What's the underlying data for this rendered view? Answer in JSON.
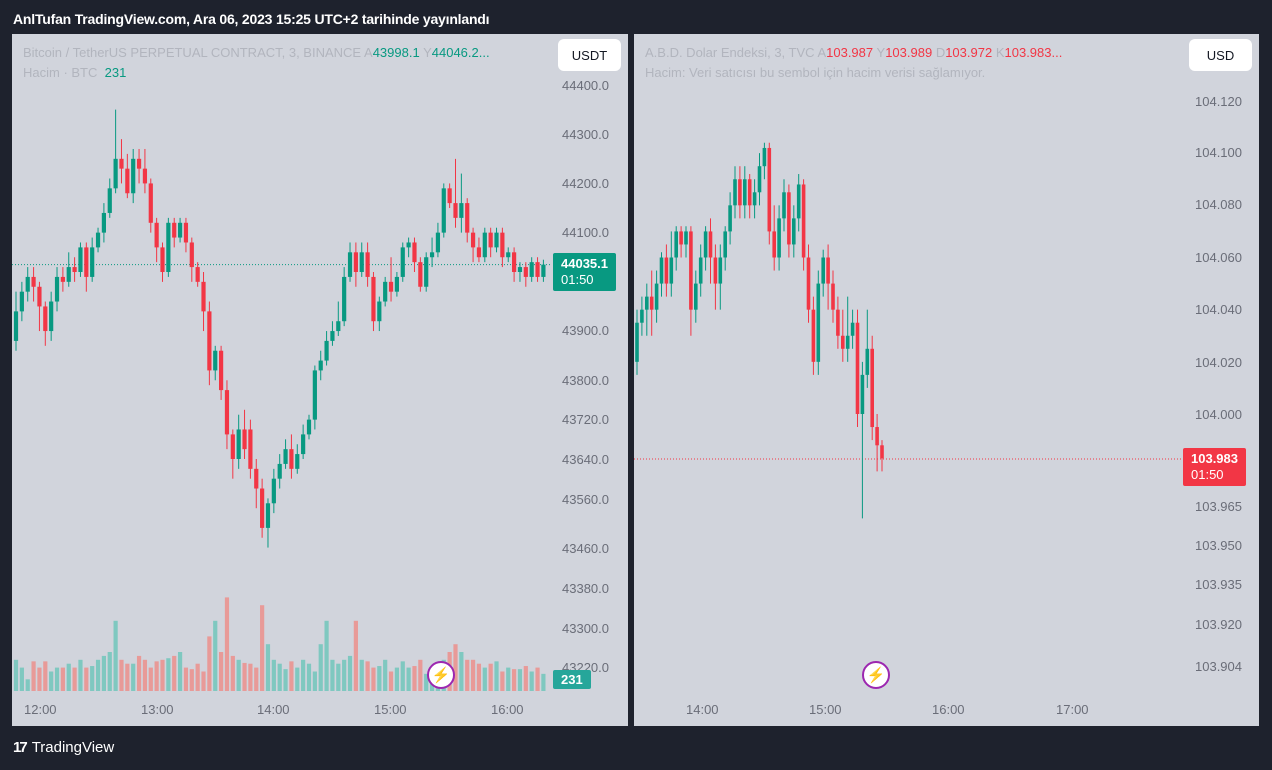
{
  "header": {
    "title": "AnlTufan TradingView.com, Ara 06, 2023 15:25 UTC+2 tarihinde yayınlandı"
  },
  "footer": {
    "logo_text": "TradingView",
    "logo_icon": "tradingview-logo-icon"
  },
  "left_panel": {
    "symbol": "Bitcoin / TetherUS PERPETUAL CONTRACT, 3, BINANCE",
    "ohlc": {
      "o_label": "A",
      "o": "43998.1",
      "h_label": "Y",
      "h": "44046.2..."
    },
    "volume_label": "Hacim · BTC",
    "volume_value": "231",
    "currency": "USDT",
    "last_price": "44035.1",
    "countdown": "01:50",
    "volume_badge": "231"
  },
  "right_panel": {
    "symbol": "A.B.D. Dolar Endeksi, 3, TVC",
    "ohlc": {
      "o_label": "A",
      "o": "103.987",
      "h_label": "Y",
      "h": "103.989",
      "l_label": "D",
      "l": "103.972",
      "c_label": "K",
      "c": "103.983..."
    },
    "volume_note": "Hacim: Veri satıcısı bu sembol için hacim verisi sağlamıyor.",
    "currency": "USD",
    "last_price": "103.983",
    "countdown": "01:50"
  },
  "colors": {
    "up": "#089981",
    "down": "#f23645",
    "vol_up": "#7fc8c0",
    "vol_down": "#e89a98",
    "bg": "#d1d4dc",
    "frame": "#1e222d"
  },
  "icons": {
    "alert": "lightning-bolt-icon"
  },
  "chart_data": [
    {
      "type": "candlestick",
      "title": "Bitcoin / TetherUS PERPETUAL CONTRACT, 3, BINANCE",
      "x_ticks": [
        "12:00",
        "13:00",
        "14:00",
        "15:00",
        "16:00"
      ],
      "y_ticks": [
        "44400.0",
        "44300.0",
        "44200.0",
        "44100.0",
        "43900.0",
        "43800.0",
        "43720.0",
        "43640.0",
        "43560.0",
        "43460.0",
        "43380.0",
        "43300.0",
        "43220.0"
      ],
      "last_price": 44035.1,
      "candles": [
        [
          43880,
          43940,
          43860,
          43980
        ],
        [
          43940,
          43980,
          43920,
          44000
        ],
        [
          43980,
          44010,
          43960,
          44030
        ],
        [
          44010,
          43990,
          43960,
          44030
        ],
        [
          43990,
          43950,
          43900,
          44000
        ],
        [
          43950,
          43900,
          43870,
          43960
        ],
        [
          43900,
          43960,
          43880,
          43980
        ],
        [
          43960,
          44010,
          43940,
          44030
        ],
        [
          44010,
          44000,
          43980,
          44030
        ],
        [
          44000,
          44030,
          43990,
          44060
        ],
        [
          44030,
          44020,
          44000,
          44050
        ],
        [
          44020,
          44070,
          44010,
          44080
        ],
        [
          44070,
          44010,
          43980,
          44080
        ],
        [
          44010,
          44070,
          44000,
          44090
        ],
        [
          44070,
          44100,
          44060,
          44110
        ],
        [
          44100,
          44140,
          44080,
          44160
        ],
        [
          44140,
          44190,
          44130,
          44210
        ],
        [
          44190,
          44250,
          44180,
          44350
        ],
        [
          44250,
          44230,
          44200,
          44290
        ],
        [
          44230,
          44180,
          44170,
          44260
        ],
        [
          44180,
          44250,
          44160,
          44270
        ],
        [
          44250,
          44230,
          44200,
          44270
        ],
        [
          44230,
          44200,
          44180,
          44270
        ],
        [
          44200,
          44120,
          44100,
          44210
        ],
        [
          44120,
          44070,
          44040,
          44130
        ],
        [
          44070,
          44020,
          44000,
          44080
        ],
        [
          44020,
          44120,
          44010,
          44130
        ],
        [
          44120,
          44090,
          44070,
          44130
        ],
        [
          44090,
          44120,
          44080,
          44130
        ],
        [
          44120,
          44080,
          44060,
          44130
        ],
        [
          44080,
          44030,
          44000,
          44090
        ],
        [
          44030,
          44000,
          43990,
          44040
        ],
        [
          44000,
          43940,
          43900,
          44020
        ],
        [
          43940,
          43820,
          43790,
          43960
        ],
        [
          43820,
          43860,
          43800,
          43870
        ],
        [
          43860,
          43780,
          43760,
          43870
        ],
        [
          43780,
          43690,
          43660,
          43800
        ],
        [
          43690,
          43640,
          43600,
          43700
        ],
        [
          43640,
          43700,
          43620,
          43730
        ],
        [
          43700,
          43660,
          43640,
          43740
        ],
        [
          43700,
          43620,
          43600,
          43720
        ],
        [
          43620,
          43580,
          43540,
          43640
        ],
        [
          43580,
          43500,
          43480,
          43600
        ],
        [
          43500,
          43550,
          43460,
          43560
        ],
        [
          43550,
          43600,
          43530,
          43620
        ],
        [
          43600,
          43630,
          43580,
          43650
        ],
        [
          43630,
          43660,
          43620,
          43680
        ],
        [
          43660,
          43620,
          43600,
          43690
        ],
        [
          43620,
          43650,
          43610,
          43670
        ],
        [
          43650,
          43690,
          43640,
          43710
        ],
        [
          43690,
          43720,
          43680,
          43730
        ],
        [
          43720,
          43820,
          43700,
          43830
        ],
        [
          43820,
          43840,
          43800,
          43860
        ],
        [
          43840,
          43880,
          43830,
          43900
        ],
        [
          43880,
          43900,
          43870,
          43920
        ],
        [
          43900,
          43920,
          43890,
          43960
        ],
        [
          43920,
          44010,
          43910,
          44030
        ],
        [
          44010,
          44060,
          44000,
          44080
        ],
        [
          44060,
          44020,
          43990,
          44080
        ],
        [
          44020,
          44060,
          44010,
          44080
        ],
        [
          44060,
          44010,
          43990,
          44080
        ],
        [
          44010,
          43920,
          43900,
          44020
        ],
        [
          43920,
          43960,
          43900,
          43970
        ],
        [
          43960,
          44000,
          43950,
          44010
        ],
        [
          44000,
          43980,
          43960,
          44050
        ],
        [
          43980,
          44010,
          43970,
          44020
        ],
        [
          44010,
          44070,
          44000,
          44080
        ],
        [
          44070,
          44080,
          44050,
          44090
        ],
        [
          44080,
          44040,
          44020,
          44090
        ],
        [
          44040,
          43990,
          43980,
          44050
        ],
        [
          43990,
          44050,
          43980,
          44060
        ],
        [
          44050,
          44060,
          44030,
          44090
        ],
        [
          44060,
          44100,
          44050,
          44120
        ],
        [
          44100,
          44190,
          44090,
          44200
        ],
        [
          44190,
          44160,
          44150,
          44200
        ],
        [
          44160,
          44130,
          44110,
          44250
        ],
        [
          44130,
          44160,
          44100,
          44220
        ],
        [
          44160,
          44100,
          44080,
          44170
        ],
        [
          44100,
          44070,
          44040,
          44110
        ],
        [
          44070,
          44050,
          44040,
          44090
        ],
        [
          44050,
          44100,
          44040,
          44110
        ],
        [
          44100,
          44070,
          44050,
          44110
        ],
        [
          44070,
          44100,
          44060,
          44110
        ],
        [
          44100,
          44050,
          44030,
          44110
        ],
        [
          44050,
          44060,
          44040,
          44070
        ],
        [
          44060,
          44020,
          44000,
          44070
        ],
        [
          44020,
          44030,
          44000,
          44040
        ],
        [
          44030,
          44010,
          43990,
          44040
        ],
        [
          44010,
          44040,
          44000,
          44050
        ],
        [
          44040,
          44010,
          44000,
          44050
        ],
        [
          44010,
          44035,
          44000,
          44045
        ]
      ],
      "volumes": [
        40,
        30,
        15,
        38,
        30,
        38,
        25,
        30,
        30,
        35,
        30,
        40,
        30,
        32,
        40,
        45,
        50,
        90,
        40,
        35,
        35,
        45,
        40,
        30,
        38,
        40,
        42,
        45,
        50,
        30,
        28,
        35,
        25,
        70,
        90,
        50,
        120,
        45,
        40,
        36,
        35,
        30,
        110,
        60,
        40,
        35,
        28,
        38,
        30,
        40,
        35,
        25,
        60,
        90,
        40,
        35,
        40,
        45,
        90,
        40,
        38,
        30,
        32,
        40,
        25,
        30,
        38,
        30,
        32,
        40,
        22,
        25,
        35,
        40,
        50,
        60,
        50,
        40,
        40,
        35,
        30,
        35,
        38,
        25,
        30,
        28,
        28,
        32,
        25,
        30,
        22
      ]
    },
    {
      "type": "candlestick",
      "title": "A.B.D. Dolar Endeksi, 3, TVC",
      "x_ticks": [
        "14:00",
        "15:00",
        "16:00",
        "17:00"
      ],
      "y_ticks": [
        "104.120",
        "104.100",
        "104.080",
        "104.060",
        "104.040",
        "104.020",
        "104.000",
        "103.983",
        "103.965",
        "103.950",
        "103.935",
        "103.920",
        "103.904"
      ],
      "last_price": 103.983,
      "candles": [
        [
          104.02,
          104.035,
          104.015,
          104.04
        ],
        [
          104.035,
          104.04,
          104.03,
          104.045
        ],
        [
          104.04,
          104.045,
          104.03,
          104.05
        ],
        [
          104.045,
          104.04,
          104.03,
          104.055
        ],
        [
          104.04,
          104.05,
          104.035,
          104.055
        ],
        [
          104.05,
          104.06,
          104.045,
          104.062
        ],
        [
          104.06,
          104.05,
          104.045,
          104.065
        ],
        [
          104.05,
          104.06,
          104.045,
          104.07
        ],
        [
          104.06,
          104.07,
          104.055,
          104.072
        ],
        [
          104.07,
          104.065,
          104.06,
          104.072
        ],
        [
          104.065,
          104.07,
          104.06,
          104.072
        ],
        [
          104.07,
          104.04,
          104.03,
          104.072
        ],
        [
          104.04,
          104.05,
          104.035,
          104.055
        ],
        [
          104.05,
          104.06,
          104.045,
          104.065
        ],
        [
          104.06,
          104.07,
          104.055,
          104.072
        ],
        [
          104.07,
          104.06,
          104.05,
          104.075
        ],
        [
          104.06,
          104.05,
          104.04,
          104.065
        ],
        [
          104.05,
          104.06,
          104.04,
          104.065
        ],
        [
          104.06,
          104.07,
          104.055,
          104.072
        ],
        [
          104.07,
          104.08,
          104.065,
          104.085
        ],
        [
          104.08,
          104.09,
          104.075,
          104.095
        ],
        [
          104.09,
          104.08,
          104.075,
          104.095
        ],
        [
          104.08,
          104.09,
          104.075,
          104.095
        ],
        [
          104.09,
          104.08,
          104.075,
          104.092
        ],
        [
          104.08,
          104.085,
          104.075,
          104.09
        ],
        [
          104.085,
          104.095,
          104.08,
          104.1
        ],
        [
          104.095,
          104.102,
          104.09,
          104.104
        ],
        [
          104.102,
          104.07,
          104.065,
          104.104
        ],
        [
          104.07,
          104.06,
          104.055,
          104.08
        ],
        [
          104.06,
          104.075,
          104.055,
          104.08
        ],
        [
          104.075,
          104.085,
          104.07,
          104.09
        ],
        [
          104.085,
          104.065,
          104.06,
          104.088
        ],
        [
          104.065,
          104.075,
          104.06,
          104.08
        ],
        [
          104.075,
          104.088,
          104.07,
          104.092
        ],
        [
          104.088,
          104.06,
          104.055,
          104.09
        ],
        [
          104.06,
          104.04,
          104.035,
          104.065
        ],
        [
          104.04,
          104.02,
          104.015,
          104.045
        ],
        [
          104.02,
          104.05,
          104.015,
          104.055
        ],
        [
          104.05,
          104.06,
          104.045,
          104.063
        ],
        [
          104.06,
          104.05,
          104.04,
          104.065
        ],
        [
          104.05,
          104.04,
          104.035,
          104.055
        ],
        [
          104.04,
          104.03,
          104.025,
          104.045
        ],
        [
          104.03,
          104.025,
          104.02,
          104.04
        ],
        [
          104.025,
          104.03,
          104.02,
          104.045
        ],
        [
          104.03,
          104.035,
          104.025,
          104.04
        ],
        [
          104.035,
          104.0,
          103.995,
          104.04
        ],
        [
          104.0,
          104.015,
          103.96,
          104.02
        ],
        [
          104.015,
          104.025,
          104.01,
          104.04
        ],
        [
          104.025,
          103.995,
          103.99,
          104.03
        ],
        [
          103.995,
          103.988,
          103.978,
          104.0
        ],
        [
          103.988,
          103.983,
          103.978,
          103.99
        ]
      ]
    }
  ]
}
